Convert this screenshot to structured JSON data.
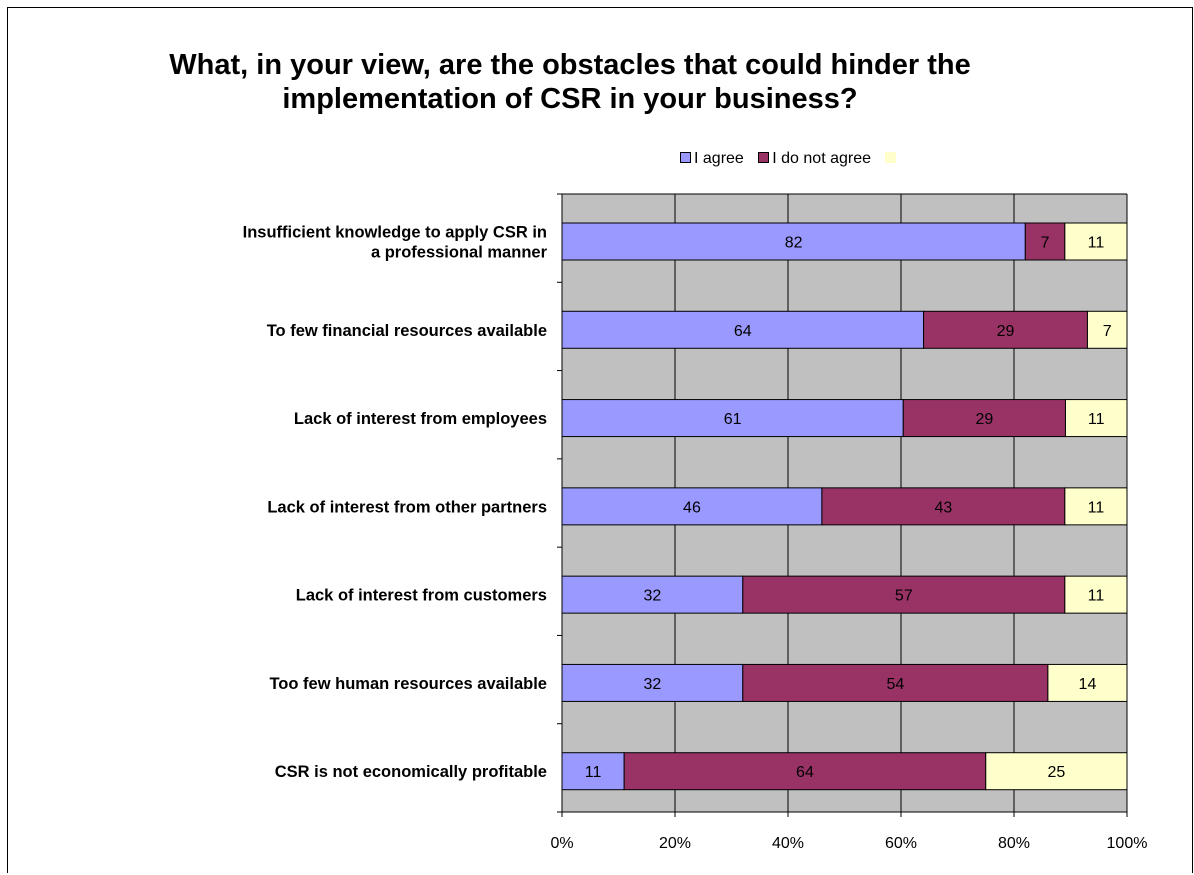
{
  "chart_data": {
    "type": "bar",
    "orientation": "horizontal",
    "stacked": "percent",
    "title_lines": [
      "What, in your view, are the obstacles that could hinder the",
      "implementation of CSR in your business?"
    ],
    "categories": [
      [
        "Insufficient knowledge to apply CSR in",
        "a professional manner"
      ],
      [
        "To few financial resources available"
      ],
      [
        "Lack of interest from employees"
      ],
      [
        "Lack of interest from other partners"
      ],
      [
        "Lack of interest from customers"
      ],
      [
        "Too few human resources available"
      ],
      [
        "CSR is not economically profitable"
      ]
    ],
    "series": [
      {
        "name": "I agree",
        "color": "#9999ff",
        "values": [
          82,
          64,
          61,
          46,
          32,
          32,
          11
        ]
      },
      {
        "name": "I do not agree",
        "color": "#993366",
        "values": [
          7,
          29,
          29,
          43,
          57,
          54,
          64
        ]
      },
      {
        "name": "",
        "color": "#ffffcc",
        "values": [
          11,
          7,
          11,
          11,
          11,
          14,
          25
        ]
      }
    ],
    "x_ticks": [
      "0%",
      "20%",
      "40%",
      "60%",
      "80%",
      "100%"
    ],
    "xlim": [
      0,
      100
    ],
    "legend_position": "top",
    "grid": true,
    "plot_background": "#c0c0c0"
  }
}
